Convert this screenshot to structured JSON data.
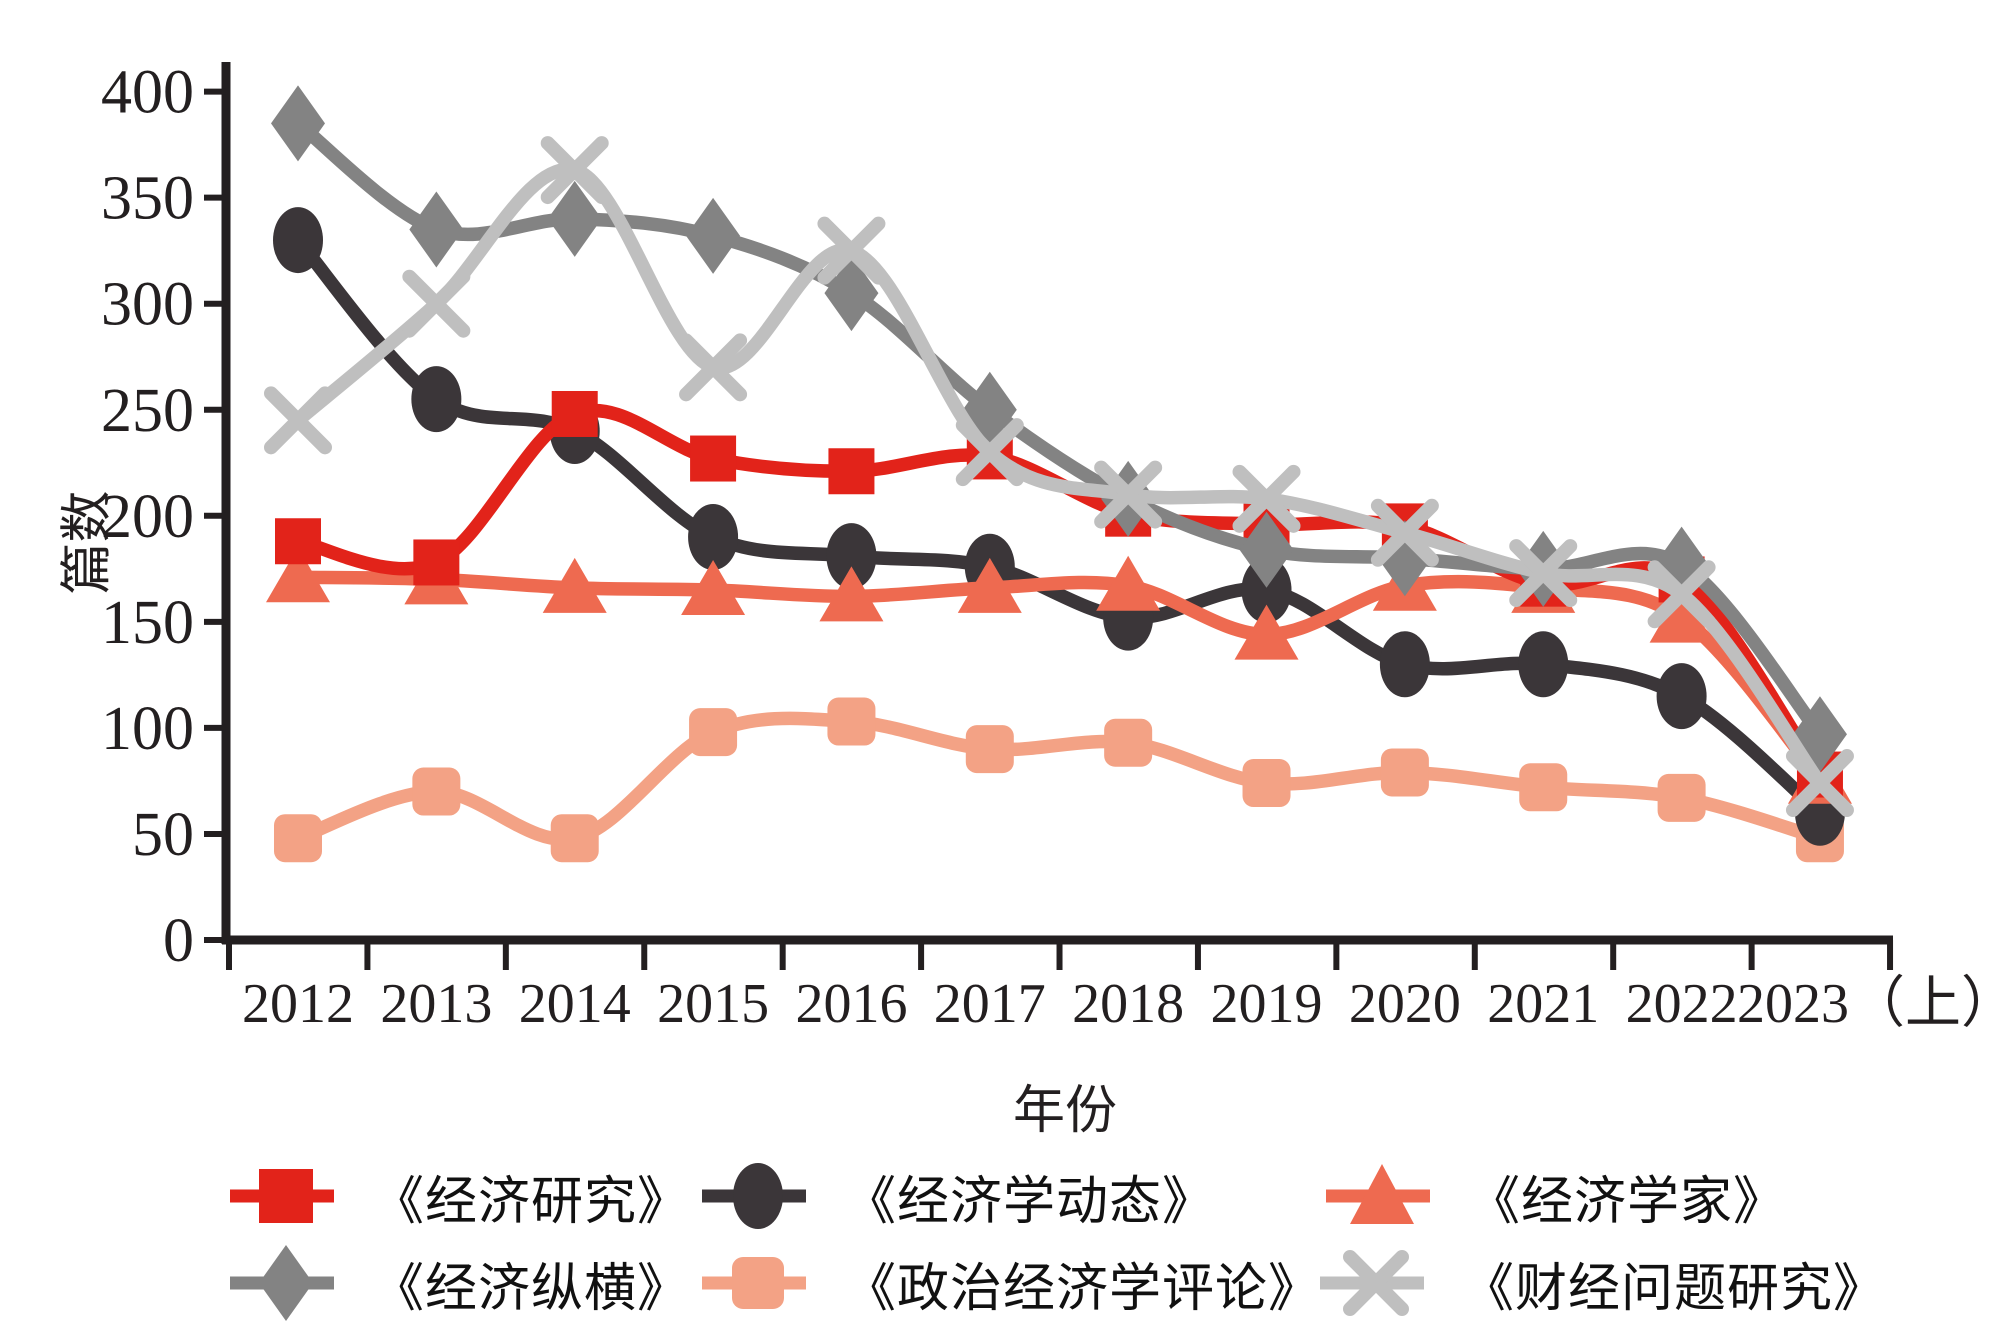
{
  "chart_data": {
    "type": "line",
    "title": "",
    "xlabel": "年份",
    "ylabel": "篇数",
    "x_categories": [
      "2012",
      "2013",
      "2014",
      "2015",
      "2016",
      "2017",
      "2018",
      "2019",
      "2020",
      "2021",
      "2022",
      "2023（上）"
    ],
    "ylim": [
      0,
      400
    ],
    "yticks": [
      0,
      50,
      100,
      150,
      200,
      250,
      300,
      350,
      400
    ],
    "grid": false,
    "legend_position": "bottom",
    "axis_color": "#231f20",
    "series": [
      {
        "name": "《经济研究》",
        "marker": "square",
        "color": "#e2231a",
        "z": 4,
        "values": [
          188,
          178,
          248,
          227,
          221,
          228,
          201,
          196,
          195,
          168,
          170,
          78
        ]
      },
      {
        "name": "《经济学动态》",
        "marker": "circle",
        "color": "#3b3639",
        "z": 2,
        "values": [
          330,
          255,
          240,
          190,
          181,
          176,
          152,
          165,
          130,
          130,
          115,
          60
        ]
      },
      {
        "name": "《经济学家》",
        "marker": "triangle",
        "color": "#ee6a50",
        "z": 3,
        "values": [
          171,
          170,
          166,
          165,
          162,
          166,
          167,
          144,
          167,
          166,
          152,
          76
        ]
      },
      {
        "name": "《经济纵横》",
        "marker": "diamond",
        "color": "#838383",
        "z": 5,
        "values": [
          385,
          335,
          340,
          332,
          305,
          250,
          208,
          184,
          180,
          175,
          177,
          97
        ]
      },
      {
        "name": "《政治经济学评论》",
        "marker": "rounded-square",
        "color": "#f3a285",
        "z": 1,
        "values": [
          48,
          70,
          48,
          98,
          103,
          90,
          93,
          74,
          79,
          72,
          67,
          48
        ]
      },
      {
        "name": "《财经问题研究》",
        "marker": "x",
        "color": "#bfbfbf",
        "z": 6,
        "values": [
          245,
          300,
          363,
          270,
          325,
          230,
          210,
          208,
          192,
          173,
          163,
          74
        ]
      }
    ]
  }
}
